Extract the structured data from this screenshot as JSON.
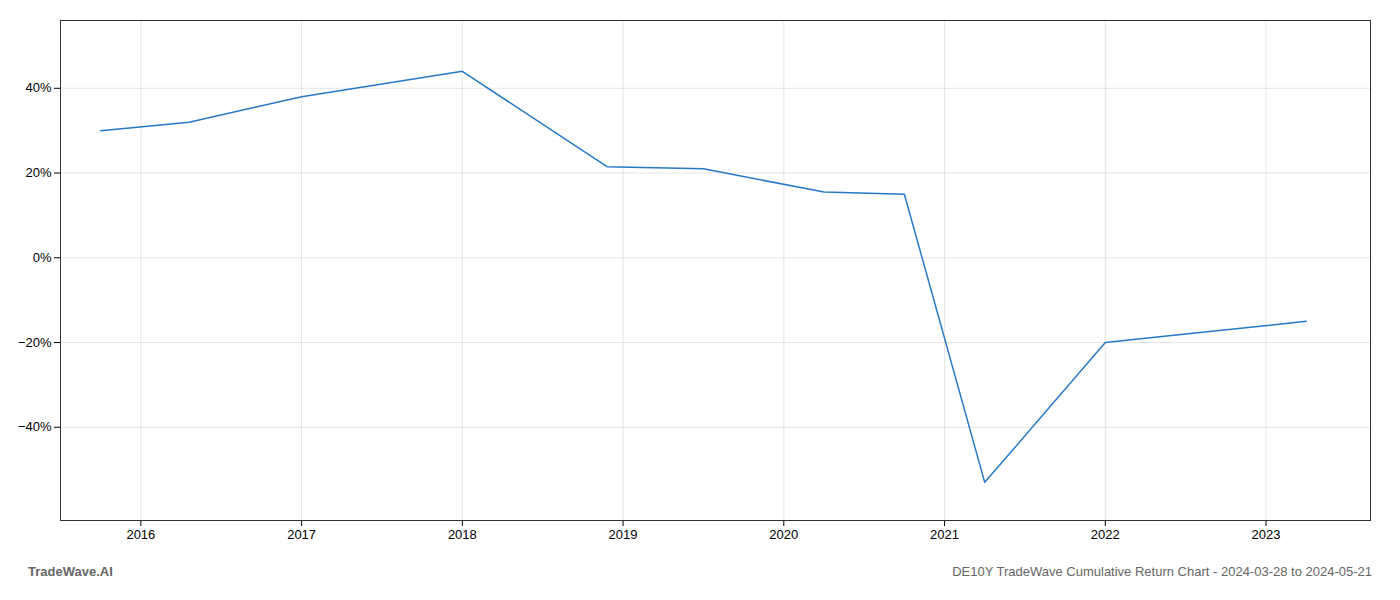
{
  "chart_data": {
    "type": "line",
    "x": [
      2015.75,
      2016.3,
      2017.0,
      2018.0,
      2018.9,
      2019.5,
      2020.25,
      2020.75,
      2021.25,
      2022.0,
      2022.5,
      2023.25
    ],
    "values": [
      30.0,
      32.0,
      38.0,
      44.0,
      21.5,
      21.0,
      15.5,
      15.0,
      -53.0,
      -20.0,
      -18.0,
      -15.0
    ],
    "color": "#2878c8",
    "xlim": [
      2015.5,
      2023.65
    ],
    "ylim": [
      -62,
      56
    ],
    "xticks": [
      2016,
      2017,
      2018,
      2019,
      2020,
      2021,
      2022,
      2023
    ],
    "yticks": [
      {
        "value": -40,
        "label": "−40%"
      },
      {
        "value": -20,
        "label": "−20%"
      },
      {
        "value": 0,
        "label": "0%"
      },
      {
        "value": 20,
        "label": "20%"
      },
      {
        "value": 40,
        "label": "40%"
      }
    ],
    "grid": true,
    "annotations": [
      "TradeWave.AI",
      "DE10Y TradeWave Cumulative Return Chart - 2024-03-28 to 2024-05-21"
    ]
  }
}
